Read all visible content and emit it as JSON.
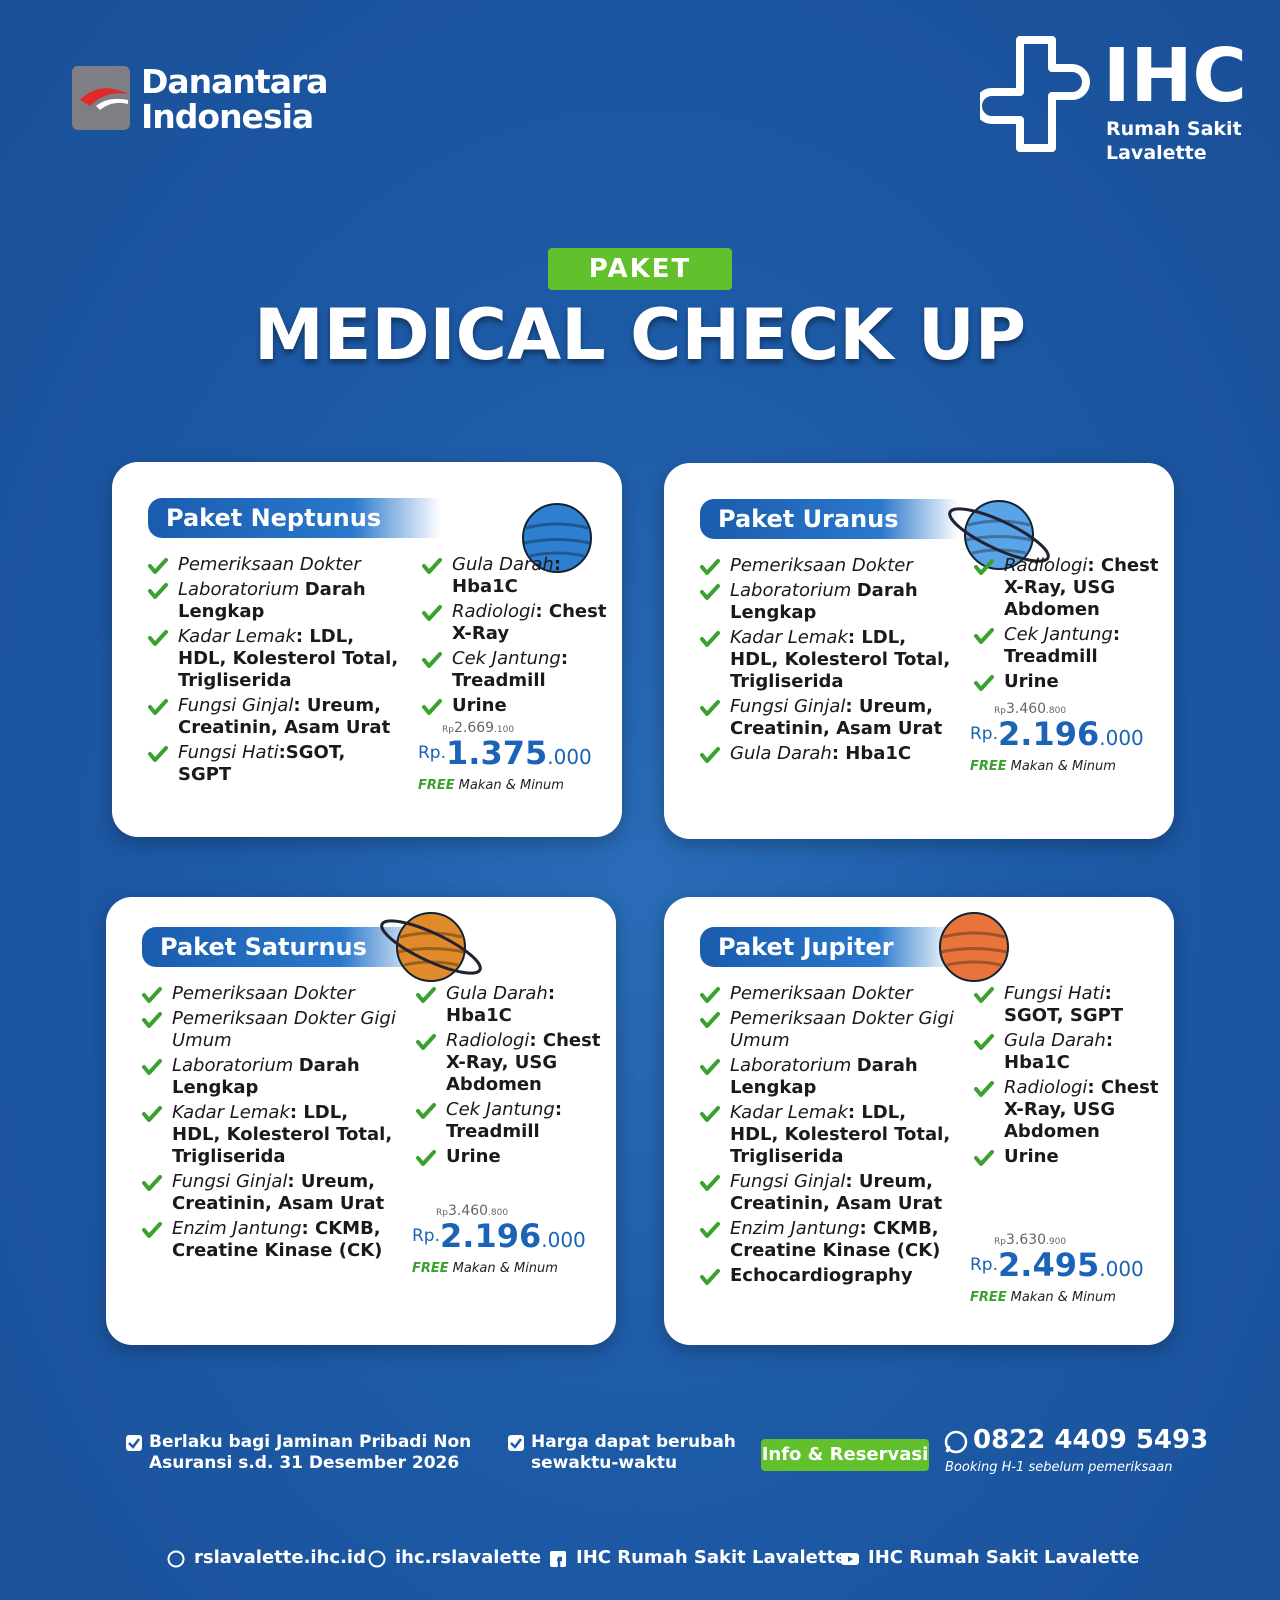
{
  "header": {
    "brand_left": [
      "Danantara",
      "Indonesia"
    ],
    "brand_right": {
      "name": "IHC",
      "sub": [
        "Rumah Sakit",
        "Lavalette"
      ]
    }
  },
  "badge": "PAKET",
  "title": "MEDICAL CHECK UP",
  "currency_old": "Rp",
  "currency_new": "Rp.",
  "free": "FREE",
  "free_text": "Makan & Minum",
  "packages": [
    {
      "name": "Paket Neptunus",
      "left": [
        {
          "i": "Pemeriksaan Dokter"
        },
        {
          "i": "Laboratorium",
          "b": "Darah Lengkap"
        },
        {
          "i": "Kadar Lemak",
          "b": ": LDL, HDL, Kolesterol Total, Trigliserida"
        },
        {
          "i": "Fungsi Ginjal",
          "b": ": Ureum, Creatinin, Asam Urat"
        },
        {
          "i": "Fungsi Hati",
          "b": ":SGOT, SGPT"
        }
      ],
      "right": [
        {
          "i": "Gula Darah",
          "b": ": Hba1C"
        },
        {
          "i": "Radiologi",
          "b": ": Chest X-Ray"
        },
        {
          "i": "Cek Jantung",
          "b": ": Treadmill"
        },
        {
          "b": "Urine"
        }
      ],
      "old_price": "2.669",
      "old_tail": ".100",
      "new_price": "1.375",
      "new_tail": ".000"
    },
    {
      "name": "Paket Uranus",
      "left": [
        {
          "i": "Pemeriksaan Dokter"
        },
        {
          "i": "Laboratorium",
          "b": "Darah Lengkap"
        },
        {
          "i": "Kadar Lemak",
          "b": ": LDL, HDL, Kolesterol Total, Trigliserida"
        },
        {
          "i": "Fungsi Ginjal",
          "b": ": Ureum, Creatinin, Asam Urat"
        },
        {
          "i": "Gula Darah",
          "b": ": Hba1C"
        }
      ],
      "right": [
        {
          "i": "Radiologi",
          "b": ": Chest X-Ray, USG Abdomen"
        },
        {
          "i": "Cek Jantung",
          "b": ": Treadmill"
        },
        {
          "b": "Urine"
        }
      ],
      "old_price": "3.460",
      "old_tail": ".800",
      "new_price": "2.196",
      "new_tail": ".000"
    },
    {
      "name": "Paket Saturnus",
      "left": [
        {
          "i": "Pemeriksaan Dokter"
        },
        {
          "i": "Pemeriksaan Dokter Gigi Umum"
        },
        {
          "i": "Laboratorium",
          "b": "Darah Lengkap"
        },
        {
          "i": "Kadar Lemak",
          "b": ": LDL, HDL, Kolesterol Total, Trigliserida"
        },
        {
          "i": "Fungsi Ginjal",
          "b": ": Ureum, Creatinin, Asam Urat"
        },
        {
          "i": "Enzim Jantung",
          "b": ": CKMB, Creatine Kinase (CK)"
        }
      ],
      "right": [
        {
          "i": "Gula Darah",
          "b": ": Hba1C"
        },
        {
          "i": "Radiologi",
          "b": ": Chest X-Ray, USG Abdomen"
        },
        {
          "i": "Cek Jantung",
          "b": ": Treadmill"
        },
        {
          "b": "Urine"
        }
      ],
      "old_price": "3.460",
      "old_tail": ".800",
      "new_price": "2.196",
      "new_tail": ".000"
    },
    {
      "name": "Paket Jupiter",
      "left": [
        {
          "i": "Pemeriksaan Dokter"
        },
        {
          "i": "Pemeriksaan Dokter Gigi Umum"
        },
        {
          "i": "Laboratorium",
          "b": "Darah Lengkap"
        },
        {
          "i": "Kadar Lemak",
          "b": ": LDL, HDL, Kolesterol Total, Trigliserida"
        },
        {
          "i": "Fungsi Ginjal",
          "b": ": Ureum, Creatinin, Asam Urat"
        },
        {
          "i": "Enzim Jantung",
          "b": ": CKMB, Creatine Kinase (CK)"
        },
        {
          "b": "Echocardiography"
        }
      ],
      "right": [
        {
          "i": "Fungsi Hati",
          "b": ": SGOT, SGPT"
        },
        {
          "i": "Gula Darah",
          "b": ": Hba1C"
        },
        {
          "i": "Radiologi",
          "b": ": Chest X-Ray, USG Abdomen"
        },
        {
          "b": "Urine"
        }
      ],
      "old_price": "3.630",
      "old_tail": ".900",
      "new_price": "2.495",
      "new_tail": ".000"
    }
  ],
  "footer": {
    "notes": [
      "Berlaku bagi Jaminan Pribadi Non Asuransi s.d. 31 Desember 2026",
      "Harga dapat berubah sewaktu-waktu"
    ],
    "button": "Info & Reservasi",
    "phone": "0822 4409 5493",
    "booking": "Booking H-1 sebelum pemeriksaan",
    "socials": [
      "rslavalette.ihc.id",
      "ihc.rslavalette",
      "IHC Rumah Sakit Lavalette",
      "IHC Rumah Sakit Lavalette"
    ]
  }
}
